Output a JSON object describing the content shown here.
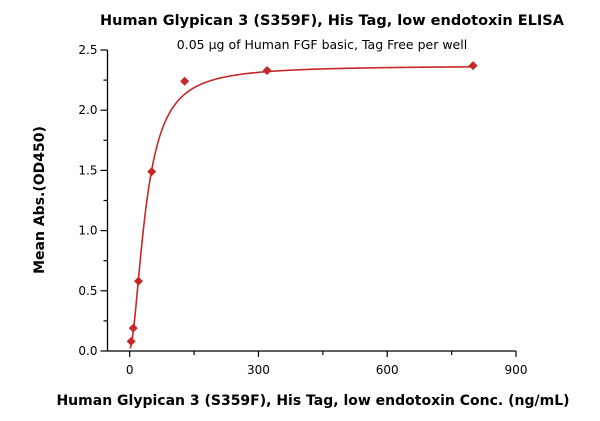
{
  "chart_data": {
    "type": "scatter",
    "title": "Human Glypican 3 (S359F), His Tag, low endotoxin ELISA",
    "subtitle": "0.05 μg of Human FGF basic, Tag Free per well",
    "xlabel": "Human Glypican 3 (S359F), His Tag, low endotoxin Conc. (ng/mL)",
    "ylabel": "Mean Abs.(OD450)",
    "xlim": [
      0,
      900
    ],
    "ylim": [
      0,
      2.5
    ],
    "xticks": [
      "0",
      "300",
      "600",
      "900"
    ],
    "xtick_values": [
      0,
      300,
      600,
      900
    ],
    "yticks": [
      "0.0",
      "0.5",
      "1.0",
      "1.5",
      "2.0",
      "2.5"
    ],
    "ytick_values": [
      0,
      0.5,
      1.0,
      1.5,
      2.0,
      2.5
    ],
    "grid": false,
    "color": "#c62828",
    "series": [
      {
        "name": "data",
        "x": [
          3.28,
          8.19,
          20.48,
          51.2,
          128,
          320,
          800
        ],
        "y": [
          0.08,
          0.19,
          0.58,
          1.49,
          2.24,
          2.33,
          2.37
        ]
      }
    ],
    "fit": {
      "model": "4PL",
      "bottom": 0.02,
      "top": 2.37,
      "ec50": 38,
      "hill": 1.8
    }
  }
}
